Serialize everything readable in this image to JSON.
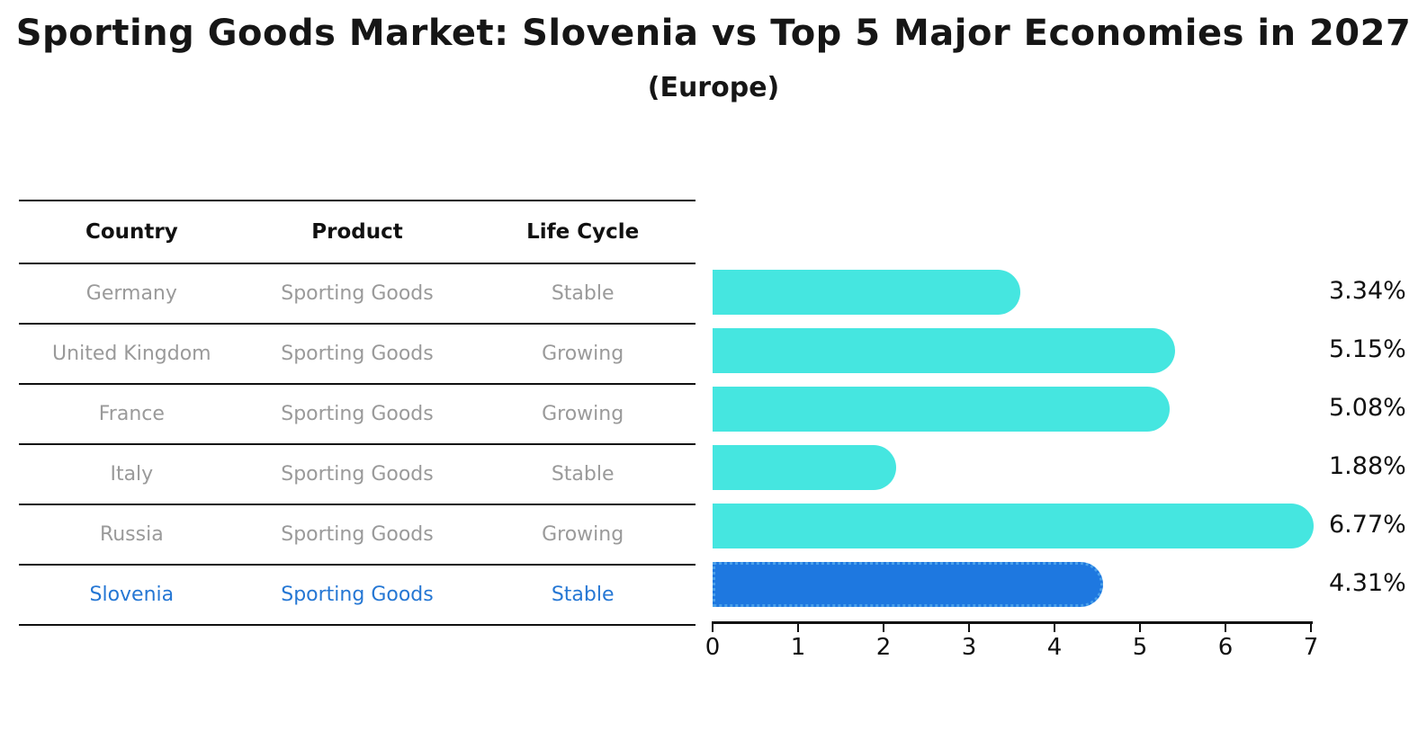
{
  "title": "Sporting Goods Market: Slovenia vs Top 5 Major Economies in 2027",
  "subtitle": "(Europe)",
  "table": {
    "headers": [
      "Country",
      "Product",
      "Life Cycle"
    ],
    "rows": [
      {
        "country": "Germany",
        "product": "Sporting Goods",
        "life_cycle": "Stable",
        "highlighted": false
      },
      {
        "country": "United Kingdom",
        "product": "Sporting Goods",
        "life_cycle": "Growing",
        "highlighted": false
      },
      {
        "country": "France",
        "product": "Sporting Goods",
        "life_cycle": "Growing",
        "highlighted": false
      },
      {
        "country": "Italy",
        "product": "Sporting Goods",
        "life_cycle": "Stable",
        "highlighted": false
      },
      {
        "country": "Russia",
        "product": "Sporting Goods",
        "life_cycle": "Growing",
        "highlighted": false
      },
      {
        "country": "Slovenia",
        "product": "Sporting Goods",
        "life_cycle": "Stable",
        "highlighted": true
      }
    ]
  },
  "chart_data": {
    "type": "bar",
    "orientation": "horizontal",
    "title": "Sporting Goods Market: Slovenia vs Top 5 Major Economies in 2027",
    "subtitle": "(Europe)",
    "categories": [
      "Germany",
      "United Kingdom",
      "France",
      "Italy",
      "Russia",
      "Slovenia"
    ],
    "values": [
      3.34,
      5.15,
      5.08,
      1.88,
      6.77,
      4.31
    ],
    "value_labels": [
      "3.34%",
      "5.15%",
      "5.08%",
      "1.88%",
      "6.77%",
      "4.31%"
    ],
    "value_label_position": "right",
    "xlim": [
      0,
      7
    ],
    "xticks": [
      0,
      1,
      2,
      3,
      4,
      5,
      6,
      7
    ],
    "grid": false,
    "legend": false,
    "bar_color": "#45E6E0",
    "highlight_color": "#1E78E0",
    "highlight_border_color": "#4aa0ea",
    "highlight_index": 5
  }
}
